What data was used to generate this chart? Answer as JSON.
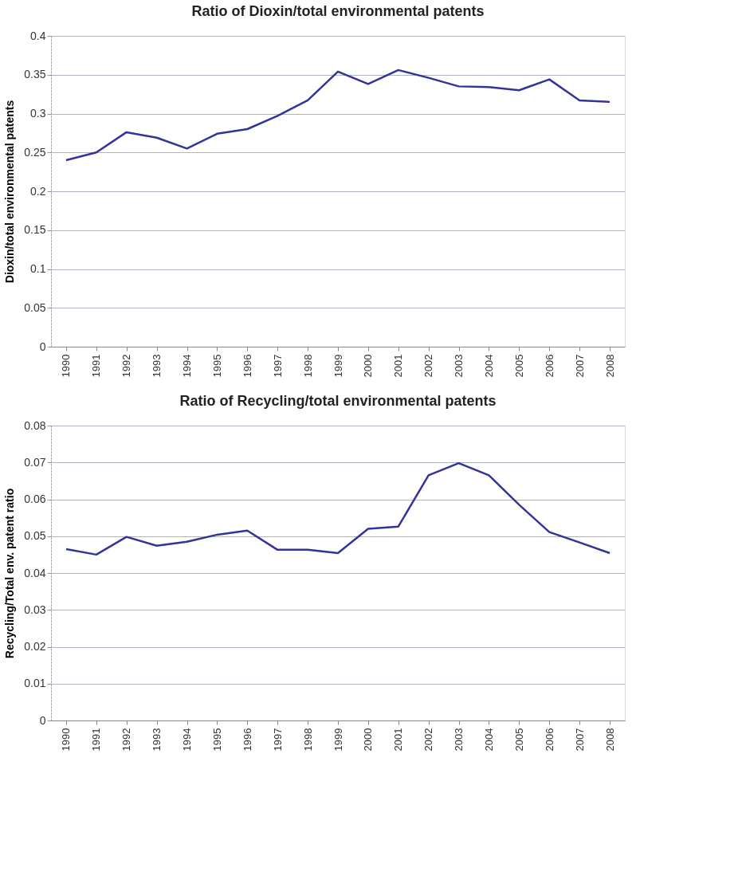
{
  "chart_data": [
    {
      "type": "line",
      "title": "Ratio of Dioxin/total environmental patents",
      "ylabel": "Dioxin/total environmental patents",
      "categories": [
        "1990",
        "1991",
        "1992",
        "1993",
        "1994",
        "1995",
        "1996",
        "1997",
        "1998",
        "1999",
        "2000",
        "2001",
        "2002",
        "2003",
        "2004",
        "2005",
        "2006",
        "2007",
        "2008"
      ],
      "series": [
        {
          "color": "#333399",
          "values": [
            0.24,
            0.25,
            0.276,
            0.269,
            0.255,
            0.274,
            0.28,
            0.297,
            0.317,
            0.354,
            0.338,
            0.356,
            0.346,
            0.335,
            0.334,
            0.33,
            0.344,
            0.317,
            0.315
          ]
        }
      ],
      "ylim": [
        0,
        0.4
      ],
      "yticks": [
        {
          "value": 0,
          "label": "0"
        },
        0.05,
        0.1,
        0.15,
        0.2,
        0.25,
        0.3,
        0.35,
        0.4
      ],
      "grid": "y",
      "line_style": "solid"
    },
    {
      "type": "line",
      "title": "Ratio of Recycling/total environmental patents",
      "ylabel": "Recycling/Total env. patent ratio",
      "categories": [
        "1990",
        "1991",
        "1992",
        "1993",
        "1994",
        "1995",
        "1996",
        "1997",
        "1998",
        "1999",
        "2000",
        "2001",
        "2002",
        "2003",
        "2004",
        "2005",
        "2006",
        "2007",
        "2008"
      ],
      "series": [
        {
          "color": "#333399",
          "values": [
            0.0465,
            0.045,
            0.0498,
            0.0474,
            0.0485,
            0.0504,
            0.0515,
            0.0463,
            0.0463,
            0.0454,
            0.052,
            0.0526,
            0.0665,
            0.0698,
            0.0665,
            0.0585,
            0.0511,
            0.0483,
            0.0454
          ]
        }
      ],
      "ylim": [
        0,
        0.08
      ],
      "yticks": [
        {
          "value": 0,
          "label": "0"
        },
        0.01,
        0.02,
        0.03,
        0.04,
        0.05,
        0.06,
        0.07,
        0.08
      ],
      "grid": "y",
      "line_style": "solid"
    }
  ]
}
